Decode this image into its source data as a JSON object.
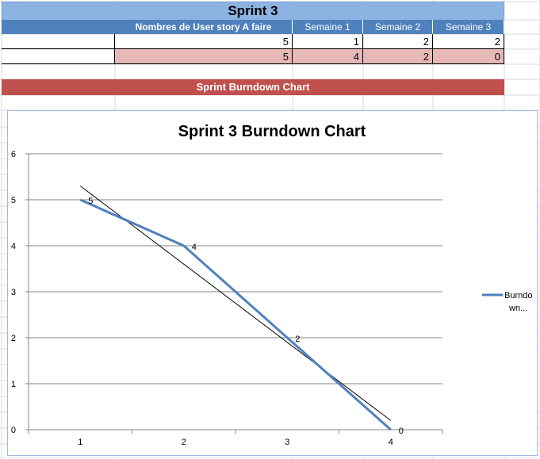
{
  "sheet": {
    "title": "Sprint 3",
    "header": [
      "Nombres de  User story A faire",
      "Semaine 1",
      "Semaine 2",
      "Semaine 3"
    ],
    "row1": [
      "5",
      "1",
      "2",
      "2"
    ],
    "row2": [
      "5",
      "4",
      "2",
      "0"
    ],
    "banner": "Sprint Burndown Chart"
  },
  "colors": {
    "title_bg": "#8db3e2",
    "header_bg": "#4f81bd",
    "row_highlight": "#e6b8b7",
    "banner_bg": "#c0504d",
    "series_line": "#4f81bd"
  },
  "chart_data": {
    "type": "line",
    "title": "Sprint 3 Burndown Chart",
    "x": [
      1,
      2,
      3,
      4
    ],
    "series": [
      {
        "name": "Burndo wn...",
        "values": [
          5,
          4,
          2,
          0
        ],
        "labels": [
          "5",
          "4",
          "2",
          "0"
        ]
      }
    ],
    "trendline": {
      "type": "linear"
    },
    "ylim": [
      0,
      6
    ],
    "yticks": [
      "0",
      "1",
      "2",
      "3",
      "4",
      "5",
      "6"
    ],
    "xticks": [
      "1",
      "2",
      "3",
      "4"
    ],
    "legend": {
      "position": "right",
      "lines": [
        "Burndo",
        "wn..."
      ]
    },
    "grid": true
  }
}
